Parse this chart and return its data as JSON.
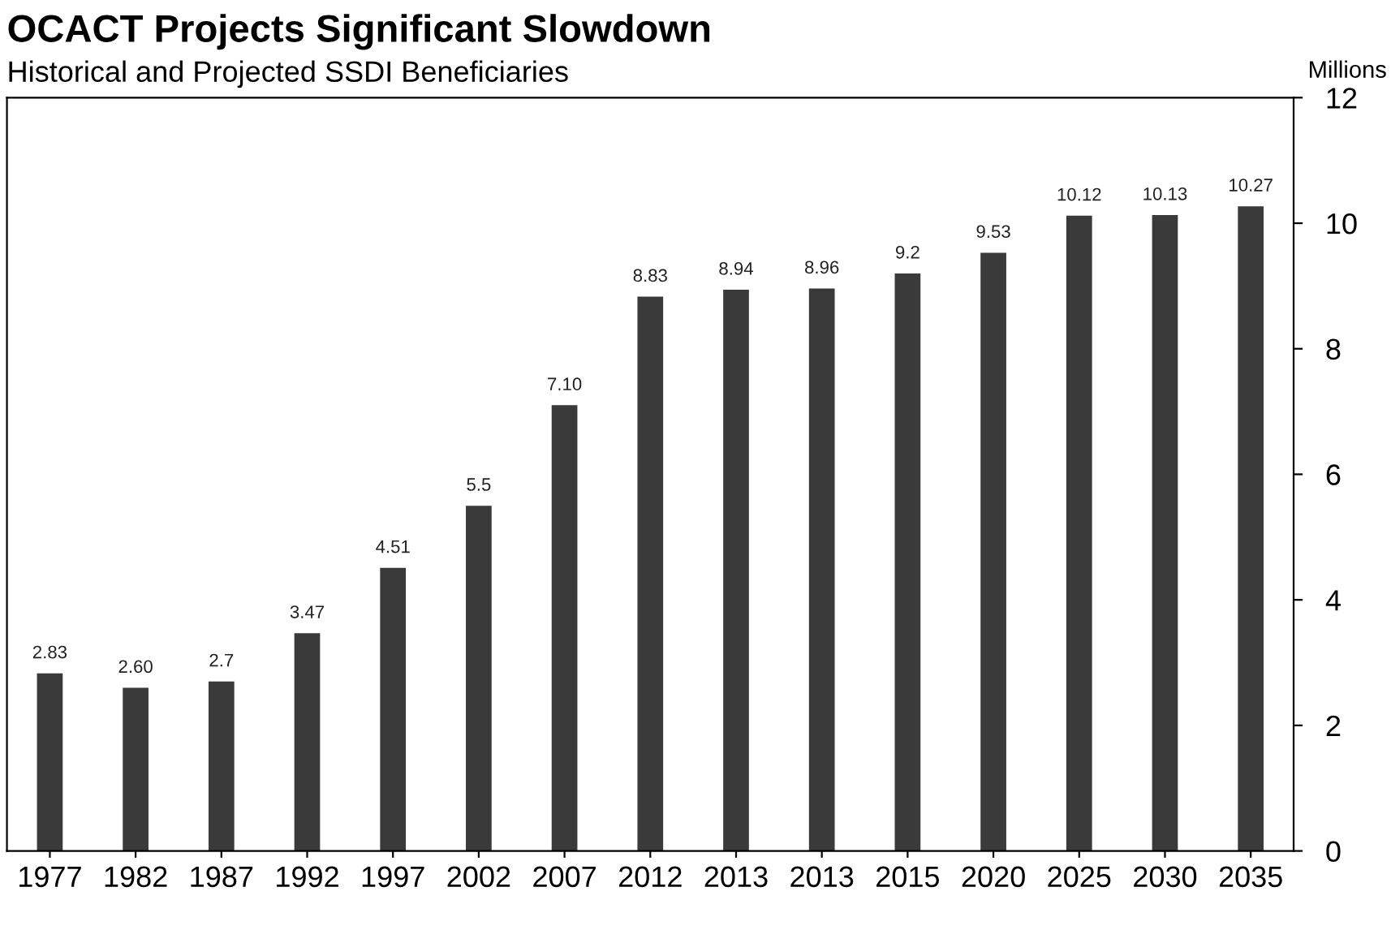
{
  "chart_data": {
    "type": "bar",
    "title": "OCACT Projects Significant Slowdown",
    "subtitle": "Historical and Projected SSDI Beneficiaries",
    "ylabel": "Millions",
    "categories": [
      "1977",
      "1982",
      "1987",
      "1992",
      "1997",
      "2002",
      "2007",
      "2012",
      "2013",
      "2013",
      "2015",
      "2020",
      "2025",
      "2030",
      "2035"
    ],
    "values": [
      2.83,
      2.6,
      2.7,
      3.47,
      4.51,
      5.5,
      7.1,
      8.83,
      8.94,
      8.96,
      9.2,
      9.53,
      10.12,
      10.13,
      10.27
    ],
    "value_labels": [
      "2.83",
      "2.60",
      "2.7",
      "3.47",
      "4.51",
      "5.5",
      "7.10",
      "8.83",
      "8.94",
      "8.96",
      "9.2",
      "9.53",
      "10.12",
      "10.13",
      "10.27"
    ],
    "color": "#3a3a3a",
    "ylim": [
      0,
      12
    ],
    "yticks": [
      0,
      2,
      4,
      6,
      8,
      10,
      12
    ],
    "grid": false,
    "legend": false
  }
}
